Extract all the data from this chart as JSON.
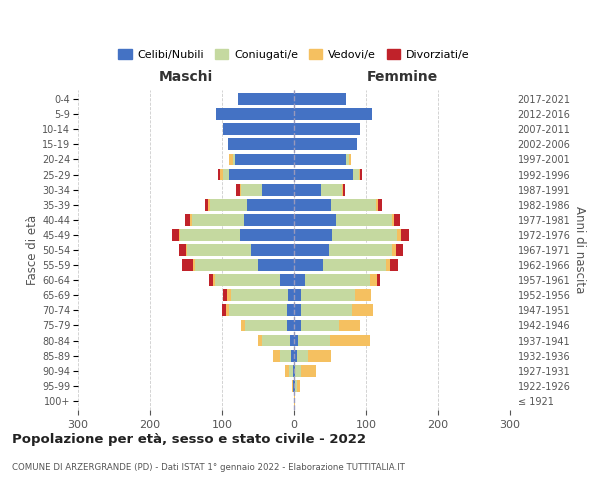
{
  "age_groups": [
    "100+",
    "95-99",
    "90-94",
    "85-89",
    "80-84",
    "75-79",
    "70-74",
    "65-69",
    "60-64",
    "55-59",
    "50-54",
    "45-49",
    "40-44",
    "35-39",
    "30-34",
    "25-29",
    "20-24",
    "15-19",
    "10-14",
    "5-9",
    "0-4"
  ],
  "birth_years": [
    "≤ 1921",
    "1922-1926",
    "1927-1931",
    "1932-1936",
    "1937-1941",
    "1942-1946",
    "1947-1951",
    "1952-1956",
    "1957-1961",
    "1962-1966",
    "1967-1971",
    "1972-1976",
    "1977-1981",
    "1982-1986",
    "1987-1991",
    "1992-1996",
    "1997-2001",
    "2002-2006",
    "2007-2011",
    "2012-2016",
    "2017-2021"
  ],
  "maschi": {
    "celibi": [
      0,
      1,
      2,
      4,
      5,
      10,
      10,
      8,
      20,
      50,
      60,
      75,
      70,
      65,
      45,
      90,
      82,
      92,
      98,
      108,
      78
    ],
    "coniugati": [
      0,
      1,
      5,
      15,
      40,
      58,
      80,
      80,
      90,
      88,
      88,
      83,
      72,
      52,
      28,
      8,
      3,
      0,
      0,
      0,
      0
    ],
    "vedovi": [
      0,
      1,
      5,
      10,
      5,
      5,
      5,
      5,
      3,
      2,
      2,
      2,
      2,
      2,
      2,
      5,
      5,
      0,
      0,
      0,
      0
    ],
    "divorziati": [
      0,
      0,
      0,
      0,
      0,
      0,
      5,
      5,
      5,
      15,
      10,
      10,
      8,
      5,
      5,
      3,
      0,
      0,
      0,
      0,
      0
    ]
  },
  "femmine": {
    "nubili": [
      0,
      1,
      2,
      4,
      5,
      10,
      10,
      10,
      15,
      40,
      48,
      53,
      58,
      52,
      38,
      82,
      72,
      88,
      92,
      108,
      72
    ],
    "coniugate": [
      0,
      3,
      8,
      15,
      45,
      52,
      70,
      75,
      90,
      88,
      88,
      90,
      78,
      62,
      28,
      8,
      5,
      0,
      0,
      0,
      0
    ],
    "vedove": [
      1,
      5,
      20,
      32,
      55,
      30,
      30,
      22,
      10,
      5,
      5,
      5,
      3,
      3,
      2,
      2,
      2,
      0,
      0,
      0,
      0
    ],
    "divorziate": [
      0,
      0,
      0,
      0,
      0,
      0,
      0,
      0,
      5,
      12,
      10,
      12,
      8,
      5,
      3,
      3,
      0,
      0,
      0,
      0,
      0
    ]
  },
  "colors": {
    "celibi_nubili": "#4472c4",
    "coniugati": "#c5d9a0",
    "vedovi": "#f5c060",
    "divorziati": "#c0222a"
  },
  "title": "Popolazione per età, sesso e stato civile - 2022",
  "subtitle": "COMUNE DI ARZERGRANDE (PD) - Dati ISTAT 1° gennaio 2022 - Elaborazione TUTTITALIA.IT",
  "xlabel_left": "Maschi",
  "xlabel_right": "Femmine",
  "ylabel_left": "Fasce di età",
  "ylabel_right": "Anni di nascita",
  "xlim": 300,
  "bg_color": "#ffffff",
  "grid_color": "#cccccc",
  "legend_labels": [
    "Celibi/Nubili",
    "Coniugati/e",
    "Vedovi/e",
    "Divorziati/e"
  ]
}
